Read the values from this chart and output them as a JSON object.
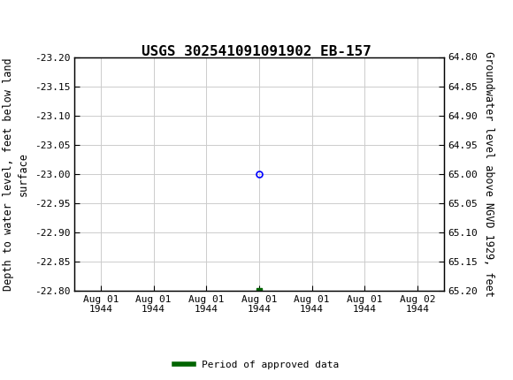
{
  "title": "USGS 302541091091902 EB-157",
  "ylabel_left": "Depth to water level, feet below land\nsurface",
  "ylabel_right": "Groundwater level above NGVD 1929, feet",
  "ylim_left": [
    -23.2,
    -22.8
  ],
  "ylim_right": [
    64.8,
    65.2
  ],
  "yticks_left": [
    -23.2,
    -23.15,
    -23.1,
    -23.05,
    -23.0,
    -22.95,
    -22.9,
    -22.85,
    -22.8
  ],
  "yticks_right": [
    64.8,
    64.85,
    64.9,
    64.95,
    65.0,
    65.05,
    65.1,
    65.15,
    65.2
  ],
  "data_point_x": 3,
  "data_point_y": -23.0,
  "data_point_color": "blue",
  "green_dot_x": 3,
  "green_dot_y": -22.8,
  "green_color": "#006400",
  "header_color": "#1b6b3a",
  "grid_color": "#cccccc",
  "bg_color": "#ffffff",
  "legend_label": "Period of approved data",
  "font_family": "monospace",
  "title_fontsize": 11.5,
  "tick_fontsize": 8,
  "label_fontsize": 8.5,
  "xtick_labels": [
    "Aug 01\n1944",
    "Aug 01\n1944",
    "Aug 01\n1944",
    "Aug 01\n1944",
    "Aug 01\n1944",
    "Aug 01\n1944",
    "Aug 02\n1944"
  ],
  "xtick_positions": [
    0,
    1,
    2,
    3,
    4,
    5,
    6
  ],
  "xlim": [
    -0.5,
    6.5
  ]
}
